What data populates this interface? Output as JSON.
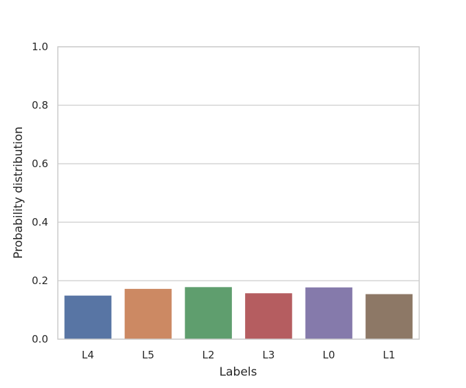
{
  "chart_data": {
    "type": "bar",
    "categories": [
      "L4",
      "L5",
      "L2",
      "L3",
      "L0",
      "L1"
    ],
    "values": [
      0.149,
      0.172,
      0.178,
      0.157,
      0.177,
      0.154
    ],
    "colors": [
      "#5875a4",
      "#cc8963",
      "#5f9e6e",
      "#b55d60",
      "#857aab",
      "#8d7866"
    ],
    "xlabel": "Labels",
    "ylabel": "Probability distribution",
    "ylim": [
      0,
      1.0
    ],
    "yticks": [
      "0.0",
      "0.2",
      "0.4",
      "0.6",
      "0.8",
      "1.0"
    ],
    "grid": "horizontal"
  }
}
